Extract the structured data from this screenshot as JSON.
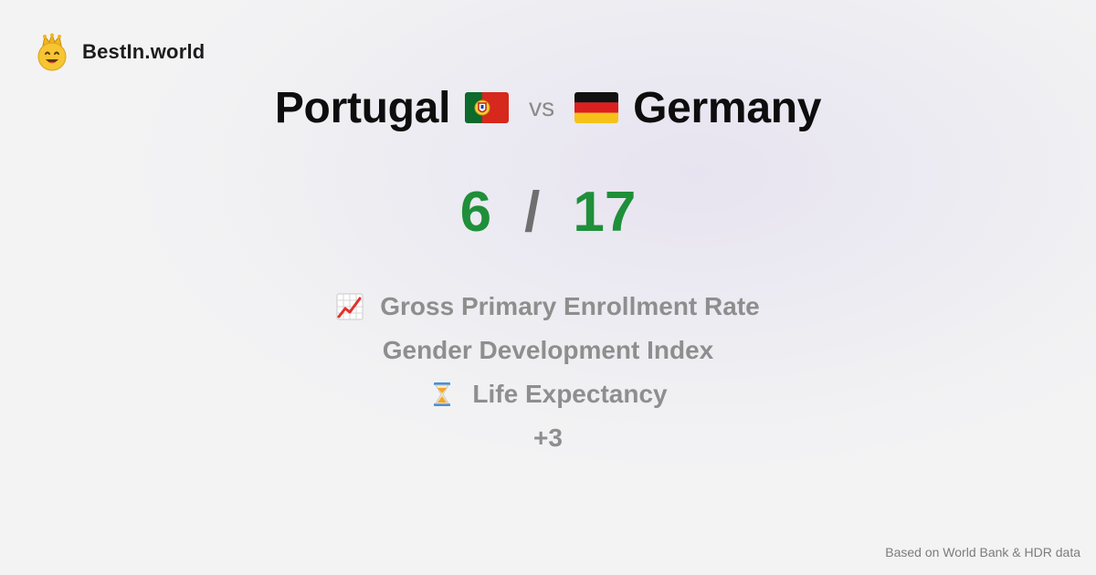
{
  "brand": {
    "name": "BestIn.world",
    "logo_icon": "crown-smiley-icon"
  },
  "comparison": {
    "left_country": "Portugal",
    "left_flag": "portugal-flag-icon",
    "vs_label": "vs",
    "right_country": "Germany",
    "right_flag": "germany-flag-icon"
  },
  "score": {
    "left": "6",
    "separator": "/",
    "right": "17",
    "color": "#1f8f3a"
  },
  "metrics": [
    {
      "icon": "chart-increasing-icon",
      "label": "Gross Primary Enrollment Rate"
    },
    {
      "icon": "",
      "label": "Gender Development Index"
    },
    {
      "icon": "hourglass-icon",
      "label": "Life Expectancy"
    },
    {
      "icon": "",
      "label": "+3"
    }
  ],
  "footer": {
    "source": "Based on World Bank & HDR data"
  }
}
